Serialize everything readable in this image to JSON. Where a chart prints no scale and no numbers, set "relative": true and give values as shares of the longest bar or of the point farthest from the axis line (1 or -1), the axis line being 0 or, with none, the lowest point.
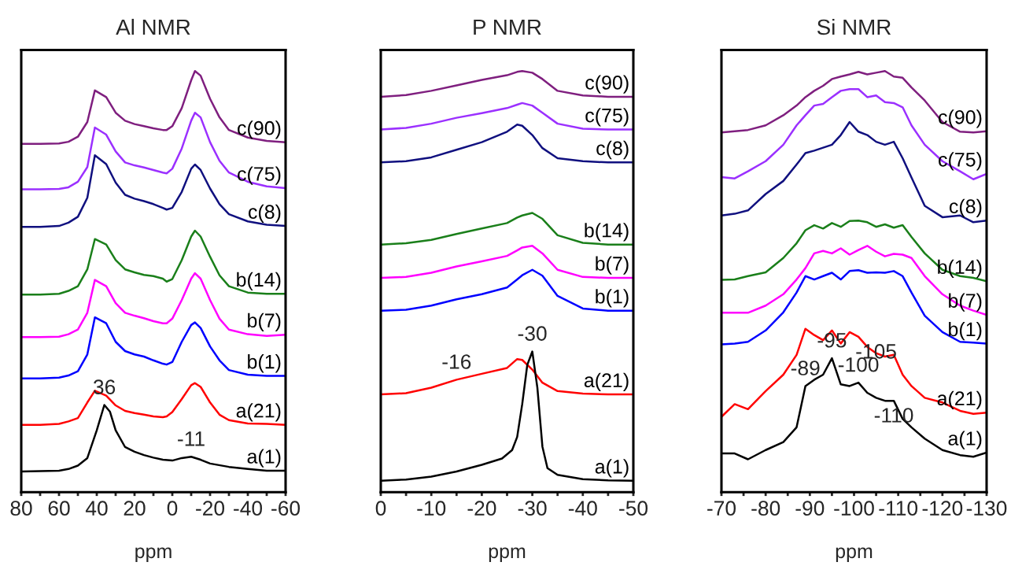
{
  "chart_data": [
    {
      "type": "line",
      "title": "Al NMR",
      "xlabel": "ppm",
      "relative": true,
      "tick_labels": "x",
      "xlim": [
        80,
        -60
      ],
      "xticks": [
        80,
        {
          "value": 70,
          "label": null
        },
        60,
        {
          "value": 50,
          "label": null
        },
        40,
        {
          "value": 30,
          "label": null
        },
        20,
        {
          "value": 10,
          "label": null
        },
        0,
        {
          "value": -10,
          "label": null
        },
        -20,
        {
          "value": -30,
          "label": null
        },
        -40,
        {
          "value": -50,
          "label": null
        },
        -60
      ],
      "x": [
        80,
        70,
        60,
        55,
        50,
        45,
        41,
        35,
        30,
        25,
        20,
        15,
        10,
        5,
        3,
        0,
        -5,
        -10,
        -12,
        -15,
        -20,
        -25,
        -30,
        -40,
        -50,
        -60
      ],
      "series": [
        {
          "name": "c(90)",
          "color": "#7f1f7f",
          "values": [
            0.827,
            0.827,
            0.828,
            0.832,
            0.844,
            0.879,
            0.954,
            0.938,
            0.901,
            0.882,
            0.874,
            0.869,
            0.864,
            0.86,
            0.86,
            0.869,
            0.912,
            0.978,
            1.0,
            0.989,
            0.934,
            0.89,
            0.86,
            0.842,
            0.834,
            0.831
          ]
        },
        {
          "name": "c(75)",
          "color": "#9b30ff",
          "values": [
            0.719,
            0.719,
            0.72,
            0.724,
            0.737,
            0.772,
            0.866,
            0.849,
            0.809,
            0.783,
            0.776,
            0.771,
            0.765,
            0.759,
            0.757,
            0.768,
            0.816,
            0.882,
            0.901,
            0.89,
            0.831,
            0.787,
            0.759,
            0.737,
            0.726,
            0.722
          ]
        },
        {
          "name": "c(8)",
          "color": "#10107f",
          "values": [
            0.63,
            0.63,
            0.632,
            0.64,
            0.654,
            0.699,
            0.8,
            0.779,
            0.735,
            0.706,
            0.697,
            0.691,
            0.684,
            0.675,
            0.671,
            0.675,
            0.713,
            0.768,
            0.778,
            0.765,
            0.721,
            0.684,
            0.66,
            0.643,
            0.635,
            0.632
          ]
        },
        {
          "name": "b(14)",
          "color": "#1a7f1a",
          "values": [
            0.469,
            0.469,
            0.471,
            0.478,
            0.489,
            0.529,
            0.601,
            0.588,
            0.551,
            0.529,
            0.522,
            0.516,
            0.513,
            0.507,
            0.5,
            0.506,
            0.551,
            0.607,
            0.621,
            0.607,
            0.559,
            0.515,
            0.489,
            0.474,
            0.471,
            0.471
          ]
        },
        {
          "name": "b(7)",
          "color": "#ff00ff",
          "values": [
            0.368,
            0.368,
            0.369,
            0.375,
            0.386,
            0.426,
            0.504,
            0.489,
            0.449,
            0.426,
            0.419,
            0.413,
            0.406,
            0.401,
            0.401,
            0.412,
            0.456,
            0.507,
            0.52,
            0.507,
            0.456,
            0.412,
            0.386,
            0.375,
            0.371,
            0.374
          ]
        },
        {
          "name": "b(1)",
          "color": "#0000ff",
          "values": [
            0.27,
            0.27,
            0.272,
            0.277,
            0.287,
            0.327,
            0.415,
            0.401,
            0.357,
            0.335,
            0.327,
            0.322,
            0.313,
            0.305,
            0.303,
            0.309,
            0.357,
            0.397,
            0.403,
            0.39,
            0.346,
            0.313,
            0.29,
            0.279,
            0.276,
            0.276
          ]
        },
        {
          "name": "a(21)",
          "color": "#ff0000",
          "values": [
            0.16,
            0.16,
            0.162,
            0.168,
            0.176,
            0.213,
            0.241,
            0.229,
            0.206,
            0.193,
            0.188,
            0.184,
            0.18,
            0.178,
            0.18,
            0.19,
            0.221,
            0.254,
            0.259,
            0.25,
            0.213,
            0.184,
            0.171,
            0.163,
            0.162,
            0.16
          ]
        },
        {
          "name": "a(1)",
          "color": "#000000",
          "x": [
            80,
            70,
            60,
            55,
            50,
            45,
            40,
            36,
            33,
            30,
            25,
            20,
            15,
            10,
            5,
            0,
            -5,
            -10,
            -15,
            -20,
            -30,
            -40,
            -50,
            -60
          ],
          "values": [
            0.049,
            0.05,
            0.051,
            0.055,
            0.063,
            0.081,
            0.147,
            0.207,
            0.191,
            0.147,
            0.107,
            0.096,
            0.088,
            0.082,
            0.077,
            0.075,
            0.081,
            0.084,
            0.077,
            0.068,
            0.06,
            0.055,
            0.051,
            0.051
          ]
        }
      ],
      "annotations": [
        {
          "text": "36",
          "x": 36,
          "y": 0.207
        },
        {
          "text": "-11",
          "x": -10,
          "y": 0.084
        }
      ]
    },
    {
      "type": "line",
      "title": "P NMR",
      "xlabel": "ppm",
      "relative": true,
      "tick_labels": "x",
      "xlim": [
        0,
        -50
      ],
      "xticks": [
        0,
        {
          "value": -5,
          "label": null
        },
        -10,
        {
          "value": -15,
          "label": null
        },
        -20,
        {
          "value": -25,
          "label": null
        },
        -30,
        {
          "value": -35,
          "label": null
        },
        -40,
        {
          "value": -45,
          "label": null
        },
        -50
      ],
      "x": [
        0,
        -5,
        -10,
        -15,
        -20,
        -25,
        -27,
        -28,
        -30,
        -32,
        -35,
        -40,
        -45,
        -50
      ],
      "series": [
        {
          "name": "c(90)",
          "color": "#7f1f7f",
          "values": [
            0.939,
            0.943,
            0.953,
            0.966,
            0.979,
            0.99,
            0.998,
            1.0,
            0.996,
            0.981,
            0.953,
            0.942,
            0.939,
            0.939
          ]
        },
        {
          "name": "c(75)",
          "color": "#9b30ff",
          "values": [
            0.861,
            0.865,
            0.875,
            0.889,
            0.9,
            0.912,
            0.92,
            0.924,
            0.918,
            0.901,
            0.875,
            0.863,
            0.861,
            0.861
          ]
        },
        {
          "name": "c(8)",
          "color": "#10107f",
          "values": [
            0.783,
            0.786,
            0.795,
            0.813,
            0.831,
            0.856,
            0.873,
            0.87,
            0.848,
            0.817,
            0.793,
            0.786,
            0.783,
            0.783
          ]
        },
        {
          "name": "b(14)",
          "color": "#1a7f1a",
          "values": [
            0.588,
            0.591,
            0.599,
            0.613,
            0.626,
            0.639,
            0.652,
            0.657,
            0.663,
            0.649,
            0.61,
            0.592,
            0.588,
            0.588
          ]
        },
        {
          "name": "b(7)",
          "color": "#ff00ff",
          "values": [
            0.509,
            0.511,
            0.521,
            0.536,
            0.548,
            0.561,
            0.574,
            0.581,
            0.585,
            0.567,
            0.528,
            0.511,
            0.509,
            0.509
          ]
        },
        {
          "name": "b(1)",
          "color": "#0000ff",
          "values": [
            0.431,
            0.433,
            0.443,
            0.458,
            0.47,
            0.486,
            0.505,
            0.515,
            0.528,
            0.514,
            0.466,
            0.436,
            0.431,
            0.431
          ]
        },
        {
          "name": "a(21)",
          "color": "#ff0000",
          "values": [
            0.232,
            0.235,
            0.248,
            0.267,
            0.281,
            0.295,
            0.316,
            0.314,
            0.291,
            0.26,
            0.24,
            0.234,
            0.232,
            0.232
          ]
        },
        {
          "name": "a(1)",
          "color": "#000000",
          "x": [
            0,
            -5,
            -10,
            -15,
            -20,
            -24,
            -26,
            -27,
            -28,
            -29,
            -30,
            -31,
            -32,
            -33,
            -35,
            -40,
            -45,
            -50
          ],
          "values": [
            0.027,
            0.03,
            0.037,
            0.049,
            0.065,
            0.08,
            0.1,
            0.131,
            0.209,
            0.302,
            0.334,
            0.248,
            0.108,
            0.057,
            0.041,
            0.031,
            0.028,
            0.027
          ]
        }
      ],
      "annotations": [
        {
          "text": "-30",
          "x": -30,
          "y": 0.334
        },
        {
          "text": "-16",
          "x": -15,
          "y": 0.267
        }
      ]
    },
    {
      "type": "line",
      "title": "Si NMR",
      "xlabel": "ppm",
      "relative": true,
      "tick_labels": "x",
      "xlim": [
        -70,
        -130
      ],
      "xticks": [
        -70,
        {
          "value": -75,
          "label": null
        },
        -80,
        {
          "value": -85,
          "label": null
        },
        -90,
        {
          "value": -95,
          "label": null
        },
        -100,
        {
          "value": -105,
          "label": null
        },
        -110,
        {
          "value": -115,
          "label": null
        },
        -120,
        {
          "value": -125,
          "label": null
        },
        -130
      ],
      "x": [
        -70,
        -73,
        -76,
        -80,
        -84,
        -87,
        -89,
        -91,
        -93,
        -95,
        -97,
        -99,
        -101,
        -103,
        -105,
        -107,
        -109,
        -111,
        -113,
        -116,
        -120,
        -124,
        -127,
        -130
      ],
      "series": [
        {
          "name": "c(90)",
          "color": "#7f1f7f",
          "values": [
            0.854,
            0.857,
            0.86,
            0.871,
            0.895,
            0.918,
            0.938,
            0.953,
            0.965,
            0.981,
            0.987,
            0.992,
            0.998,
            0.992,
            0.996,
            1.0,
            0.987,
            0.984,
            0.961,
            0.93,
            0.879,
            0.856,
            0.854,
            0.857
          ]
        },
        {
          "name": "c(75)",
          "color": "#9b30ff",
          "values": [
            0.748,
            0.745,
            0.762,
            0.786,
            0.825,
            0.871,
            0.895,
            0.918,
            0.922,
            0.938,
            0.953,
            0.957,
            0.957,
            0.938,
            0.942,
            0.926,
            0.924,
            0.914,
            0.871,
            0.825,
            0.786,
            0.762,
            0.743,
            0.756
          ]
        },
        {
          "name": "c(8)",
          "color": "#10107f",
          "values": [
            0.657,
            0.661,
            0.669,
            0.708,
            0.739,
            0.778,
            0.805,
            0.811,
            0.818,
            0.825,
            0.848,
            0.879,
            0.856,
            0.848,
            0.832,
            0.825,
            0.832,
            0.793,
            0.747,
            0.68,
            0.653,
            0.657,
            0.641,
            0.645
          ]
        },
        {
          "name": "b(14)",
          "color": "#1a7f1a",
          "values": [
            0.504,
            0.505,
            0.513,
            0.522,
            0.556,
            0.591,
            0.622,
            0.634,
            0.626,
            0.639,
            0.63,
            0.644,
            0.645,
            0.641,
            0.63,
            0.636,
            0.628,
            0.634,
            0.606,
            0.567,
            0.528,
            0.513,
            0.509,
            0.501
          ]
        },
        {
          "name": "b(7)",
          "color": "#ff00ff",
          "values": [
            0.426,
            0.426,
            0.426,
            0.443,
            0.47,
            0.505,
            0.532,
            0.567,
            0.573,
            0.567,
            0.579,
            0.564,
            0.575,
            0.585,
            0.571,
            0.56,
            0.566,
            0.564,
            0.556,
            0.513,
            0.47,
            0.443,
            0.431,
            0.421
          ]
        },
        {
          "name": "b(1)",
          "color": "#0000ff",
          "values": [
            0.351,
            0.353,
            0.357,
            0.384,
            0.427,
            0.474,
            0.513,
            0.505,
            0.513,
            0.521,
            0.505,
            0.525,
            0.527,
            0.521,
            0.522,
            0.521,
            0.525,
            0.513,
            0.474,
            0.419,
            0.38,
            0.357,
            0.355,
            0.353
          ]
        },
        {
          "name": "a(21)",
          "color": "#ff0000",
          "values": [
            0.179,
            0.209,
            0.197,
            0.24,
            0.279,
            0.326,
            0.388,
            0.373,
            0.361,
            0.384,
            0.353,
            0.38,
            0.369,
            0.345,
            0.33,
            0.322,
            0.326,
            0.279,
            0.252,
            0.224,
            0.213,
            0.193,
            0.186,
            0.189
          ]
        },
        {
          "name": "a(1)",
          "color": "#000000",
          "values": [
            0.092,
            0.092,
            0.078,
            0.1,
            0.119,
            0.154,
            0.252,
            0.267,
            0.279,
            0.318,
            0.256,
            0.252,
            0.26,
            0.236,
            0.224,
            0.217,
            0.217,
            0.174,
            0.154,
            0.127,
            0.1,
            0.088,
            0.084,
            0.094
          ]
        }
      ],
      "annotations": [
        {
          "text": "-89",
          "x": -89,
          "y": 0.252
        },
        {
          "text": "-95",
          "x": -95,
          "y": 0.318
        },
        {
          "text": "-100",
          "x": -101,
          "y": 0.26
        },
        {
          "text": "-110",
          "x": -109,
          "y": 0.217
        },
        {
          "text": "-105",
          "x": -105,
          "y": 0.224
        }
      ]
    }
  ]
}
